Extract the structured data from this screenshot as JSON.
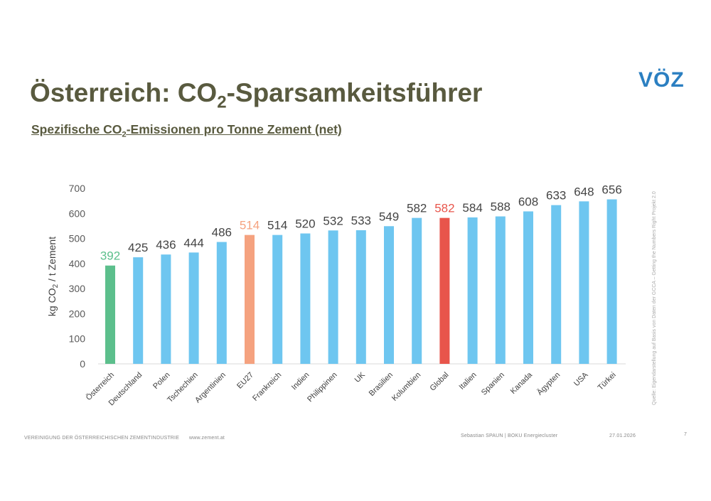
{
  "header": {
    "title_pre": "Österreich: CO",
    "title_sub": "2",
    "title_post": "-Sparsamkeitsführer",
    "subtitle_pre": "Spezifische CO",
    "subtitle_sub": "2",
    "subtitle_post": "-Emissionen pro Tonne Zement (net)",
    "logo": "VÖZ"
  },
  "source": "Quelle: Eigendarstellung auf Basis von Daten der GCCA – Getting the Numbers Right Projekt 2.0",
  "footer": {
    "org": "VEREINIGUNG DER ÖSTERREICHISCHEN ZEMENTINDUSTRIE",
    "url": "www.zement.at",
    "author": "Sebastian SPAUN  |  BOKU Energiecluster",
    "date": "27.01.2026",
    "page": "7"
  },
  "chart_data": {
    "type": "bar",
    "ylabel": "kg CO2 / t Zement",
    "ylim": [
      0,
      700
    ],
    "yticks": [
      0,
      100,
      200,
      300,
      400,
      500,
      600,
      700
    ],
    "grid": false,
    "categories": [
      "Österreich",
      "Deutschland",
      "Polen",
      "Tschechien",
      "Argentinien",
      "EU27",
      "Frankreich",
      "Indien",
      "Philippinen",
      "UK",
      "Brasilien",
      "Kolumbien",
      "Global",
      "Italien",
      "Spanien",
      "Kanada",
      "Ägypten",
      "USA",
      "Türkei"
    ],
    "values": [
      392,
      425,
      436,
      444,
      486,
      514,
      514,
      520,
      532,
      533,
      549,
      582,
      582,
      584,
      588,
      608,
      633,
      648,
      656
    ],
    "colors": {
      "default": "#6ec6f0",
      "Österreich": "#5cbf8c",
      "EU27": "#f5a27f",
      "Global": "#e8554b"
    },
    "label_colors": {
      "default": "#444444",
      "Österreich": "#5cbf8c",
      "EU27": "#f5a27f",
      "Global": "#e8554b"
    }
  }
}
